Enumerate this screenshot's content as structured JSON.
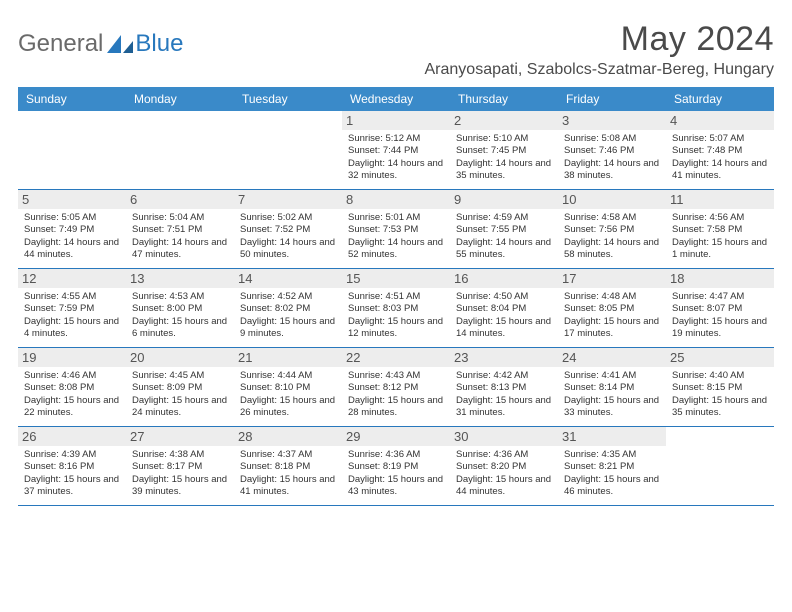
{
  "logo": {
    "general": "General",
    "blue": "Blue"
  },
  "title": "May 2024",
  "location": "Aranyosapati, Szabolcs-Szatmar-Bereg, Hungary",
  "weekdays": [
    "Sunday",
    "Monday",
    "Tuesday",
    "Wednesday",
    "Thursday",
    "Friday",
    "Saturday"
  ],
  "colors": {
    "header_bg": "#3a8ac9",
    "rule": "#2878bd",
    "daynum_bg": "#ededed",
    "text": "#333333"
  },
  "weeks": [
    [
      null,
      null,
      null,
      {
        "n": "1",
        "sr": "5:12 AM",
        "ss": "7:44 PM",
        "dl": "14 hours and 32 minutes."
      },
      {
        "n": "2",
        "sr": "5:10 AM",
        "ss": "7:45 PM",
        "dl": "14 hours and 35 minutes."
      },
      {
        "n": "3",
        "sr": "5:08 AM",
        "ss": "7:46 PM",
        "dl": "14 hours and 38 minutes."
      },
      {
        "n": "4",
        "sr": "5:07 AM",
        "ss": "7:48 PM",
        "dl": "14 hours and 41 minutes."
      }
    ],
    [
      {
        "n": "5",
        "sr": "5:05 AM",
        "ss": "7:49 PM",
        "dl": "14 hours and 44 minutes."
      },
      {
        "n": "6",
        "sr": "5:04 AM",
        "ss": "7:51 PM",
        "dl": "14 hours and 47 minutes."
      },
      {
        "n": "7",
        "sr": "5:02 AM",
        "ss": "7:52 PM",
        "dl": "14 hours and 50 minutes."
      },
      {
        "n": "8",
        "sr": "5:01 AM",
        "ss": "7:53 PM",
        "dl": "14 hours and 52 minutes."
      },
      {
        "n": "9",
        "sr": "4:59 AM",
        "ss": "7:55 PM",
        "dl": "14 hours and 55 minutes."
      },
      {
        "n": "10",
        "sr": "4:58 AM",
        "ss": "7:56 PM",
        "dl": "14 hours and 58 minutes."
      },
      {
        "n": "11",
        "sr": "4:56 AM",
        "ss": "7:58 PM",
        "dl": "15 hours and 1 minute."
      }
    ],
    [
      {
        "n": "12",
        "sr": "4:55 AM",
        "ss": "7:59 PM",
        "dl": "15 hours and 4 minutes."
      },
      {
        "n": "13",
        "sr": "4:53 AM",
        "ss": "8:00 PM",
        "dl": "15 hours and 6 minutes."
      },
      {
        "n": "14",
        "sr": "4:52 AM",
        "ss": "8:02 PM",
        "dl": "15 hours and 9 minutes."
      },
      {
        "n": "15",
        "sr": "4:51 AM",
        "ss": "8:03 PM",
        "dl": "15 hours and 12 minutes."
      },
      {
        "n": "16",
        "sr": "4:50 AM",
        "ss": "8:04 PM",
        "dl": "15 hours and 14 minutes."
      },
      {
        "n": "17",
        "sr": "4:48 AM",
        "ss": "8:05 PM",
        "dl": "15 hours and 17 minutes."
      },
      {
        "n": "18",
        "sr": "4:47 AM",
        "ss": "8:07 PM",
        "dl": "15 hours and 19 minutes."
      }
    ],
    [
      {
        "n": "19",
        "sr": "4:46 AM",
        "ss": "8:08 PM",
        "dl": "15 hours and 22 minutes."
      },
      {
        "n": "20",
        "sr": "4:45 AM",
        "ss": "8:09 PM",
        "dl": "15 hours and 24 minutes."
      },
      {
        "n": "21",
        "sr": "4:44 AM",
        "ss": "8:10 PM",
        "dl": "15 hours and 26 minutes."
      },
      {
        "n": "22",
        "sr": "4:43 AM",
        "ss": "8:12 PM",
        "dl": "15 hours and 28 minutes."
      },
      {
        "n": "23",
        "sr": "4:42 AM",
        "ss": "8:13 PM",
        "dl": "15 hours and 31 minutes."
      },
      {
        "n": "24",
        "sr": "4:41 AM",
        "ss": "8:14 PM",
        "dl": "15 hours and 33 minutes."
      },
      {
        "n": "25",
        "sr": "4:40 AM",
        "ss": "8:15 PM",
        "dl": "15 hours and 35 minutes."
      }
    ],
    [
      {
        "n": "26",
        "sr": "4:39 AM",
        "ss": "8:16 PM",
        "dl": "15 hours and 37 minutes."
      },
      {
        "n": "27",
        "sr": "4:38 AM",
        "ss": "8:17 PM",
        "dl": "15 hours and 39 minutes."
      },
      {
        "n": "28",
        "sr": "4:37 AM",
        "ss": "8:18 PM",
        "dl": "15 hours and 41 minutes."
      },
      {
        "n": "29",
        "sr": "4:36 AM",
        "ss": "8:19 PM",
        "dl": "15 hours and 43 minutes."
      },
      {
        "n": "30",
        "sr": "4:36 AM",
        "ss": "8:20 PM",
        "dl": "15 hours and 44 minutes."
      },
      {
        "n": "31",
        "sr": "4:35 AM",
        "ss": "8:21 PM",
        "dl": "15 hours and 46 minutes."
      },
      null
    ]
  ],
  "labels": {
    "sunrise": "Sunrise:",
    "sunset": "Sunset:",
    "daylight": "Daylight:"
  }
}
